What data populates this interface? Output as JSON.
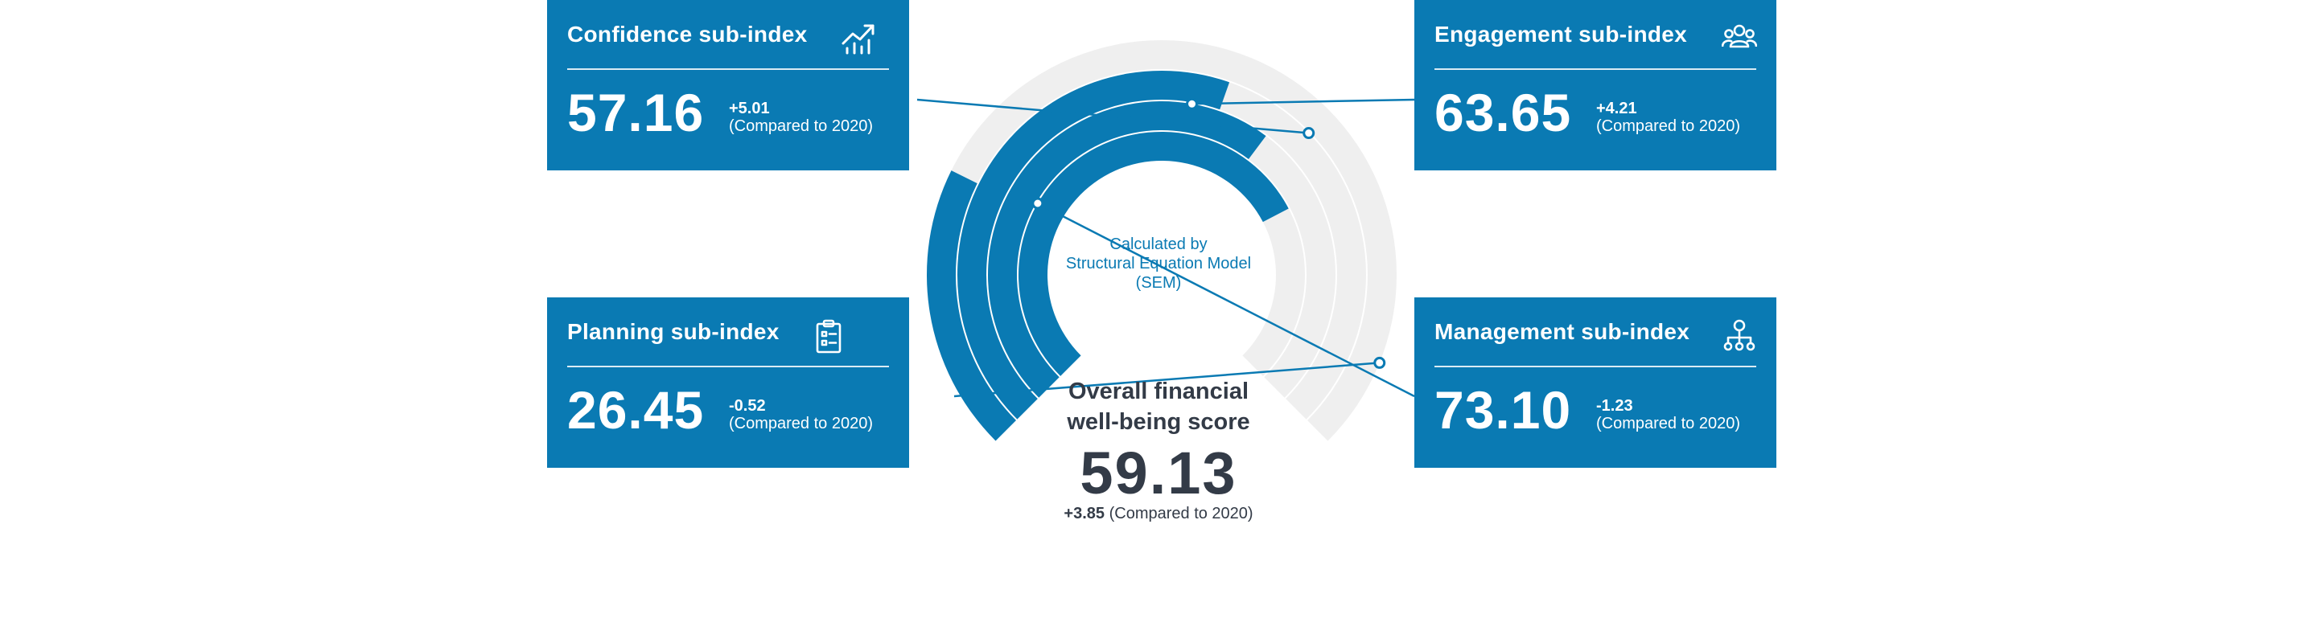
{
  "colors": {
    "accent": "#0a7ab3",
    "track": "#efefef",
    "text_dark": "#333b47",
    "white": "#ffffff"
  },
  "center": {
    "sem_note_lines": [
      "Calculated by",
      "Structural Equation Model",
      "(SEM)"
    ],
    "title_lines": [
      "Overall financial",
      "well-being score"
    ],
    "score": "59.13",
    "delta": "+3.85",
    "compare": "(Compared to 2020)"
  },
  "cards": {
    "confidence": {
      "title": "Confidence sub-index",
      "value": "57.16",
      "delta": "+5.01",
      "compare": "(Compared to 2020)",
      "icon": "trending-up-chart-icon"
    },
    "engagement": {
      "title": "Engagement sub-index",
      "value": "63.65",
      "delta": "+4.21",
      "compare": "(Compared to 2020)",
      "icon": "people-group-icon"
    },
    "planning": {
      "title": "Planning sub-index",
      "value": "26.45",
      "delta": "-0.52",
      "compare": "(Compared to 2020)",
      "icon": "clipboard-icon"
    },
    "management": {
      "title": "Management sub-index",
      "value": "73.10",
      "delta": "-1.23",
      "compare": "(Compared to 2020)",
      "icon": "hierarchy-icon"
    }
  },
  "chart_data": {
    "type": "radial-bar",
    "scale_max": 100,
    "series": [
      {
        "name": "Planning sub-index",
        "value": 26.45
      },
      {
        "name": "Confidence sub-index",
        "value": 57.16
      },
      {
        "name": "Engagement sub-index",
        "value": 63.65
      },
      {
        "name": "Management sub-index",
        "value": 73.1
      }
    ]
  }
}
